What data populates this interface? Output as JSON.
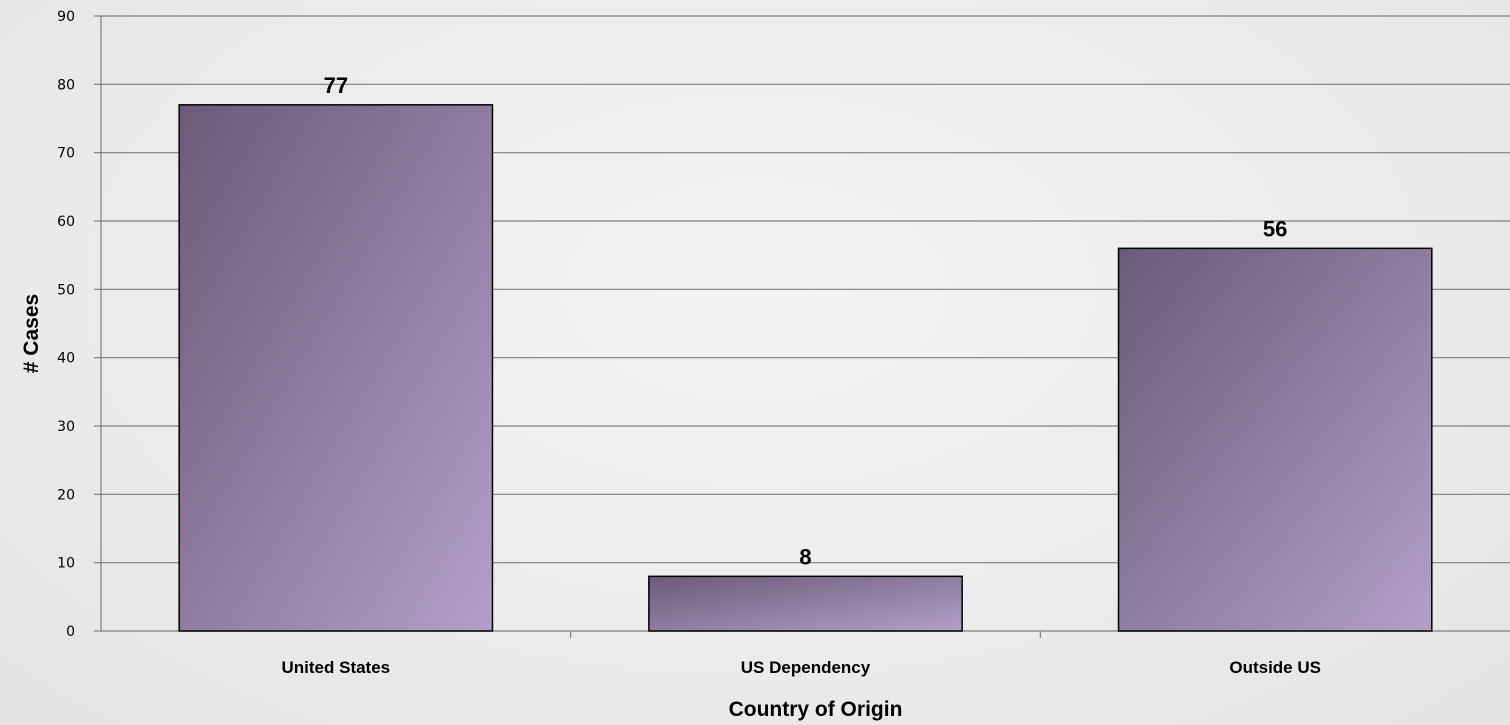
{
  "chart_data": {
    "type": "bar",
    "title": "",
    "xlabel": "Country of Origin",
    "ylabel": "# Cases",
    "categories": [
      "United States",
      "US Dependency",
      "Outside US"
    ],
    "values": [
      77,
      8,
      56
    ],
    "ylim": [
      0,
      90
    ],
    "yticks": [
      0,
      10,
      20,
      30,
      40,
      50,
      60,
      70,
      80,
      90
    ],
    "grid": true,
    "legend": "none",
    "colors": {
      "bar_dark": "#6b5a78",
      "bar_light": "#b39fca",
      "bar_stroke": "#000000",
      "grid": "#7f7f7f"
    }
  }
}
